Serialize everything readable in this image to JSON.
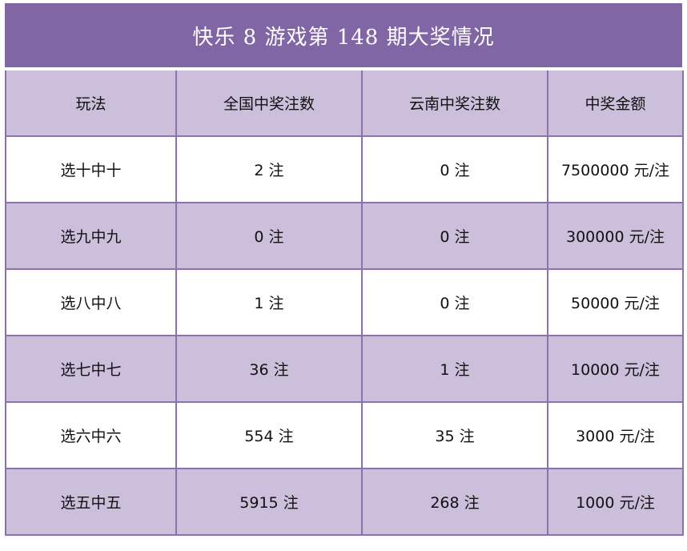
{
  "title": "快乐 8 游戏第 148 期大奖情况",
  "headers": [
    "玩法",
    "全国中奖注数",
    "云南中奖注数",
    "中奖金额"
  ],
  "rows": [
    [
      "选十中十",
      "2 注",
      "0 注",
      "7500000 元/注"
    ],
    [
      "选九中九",
      "0 注",
      "0 注",
      "300000 元/注"
    ],
    [
      "选八中八",
      "1 注",
      "0 注",
      "50000 元/注"
    ],
    [
      "选七中七",
      "36 注",
      "1 注",
      "10000 元/注"
    ],
    [
      "选六中六",
      "554 注",
      "35 注",
      "3000 元/注"
    ],
    [
      "选五中五",
      "5915 注",
      "268 注",
      "1000 元/注"
    ]
  ],
  "colors": {
    "title_bg": "#8166a6",
    "header_bg": "#cbbfdb",
    "border": "#8a72ae"
  }
}
